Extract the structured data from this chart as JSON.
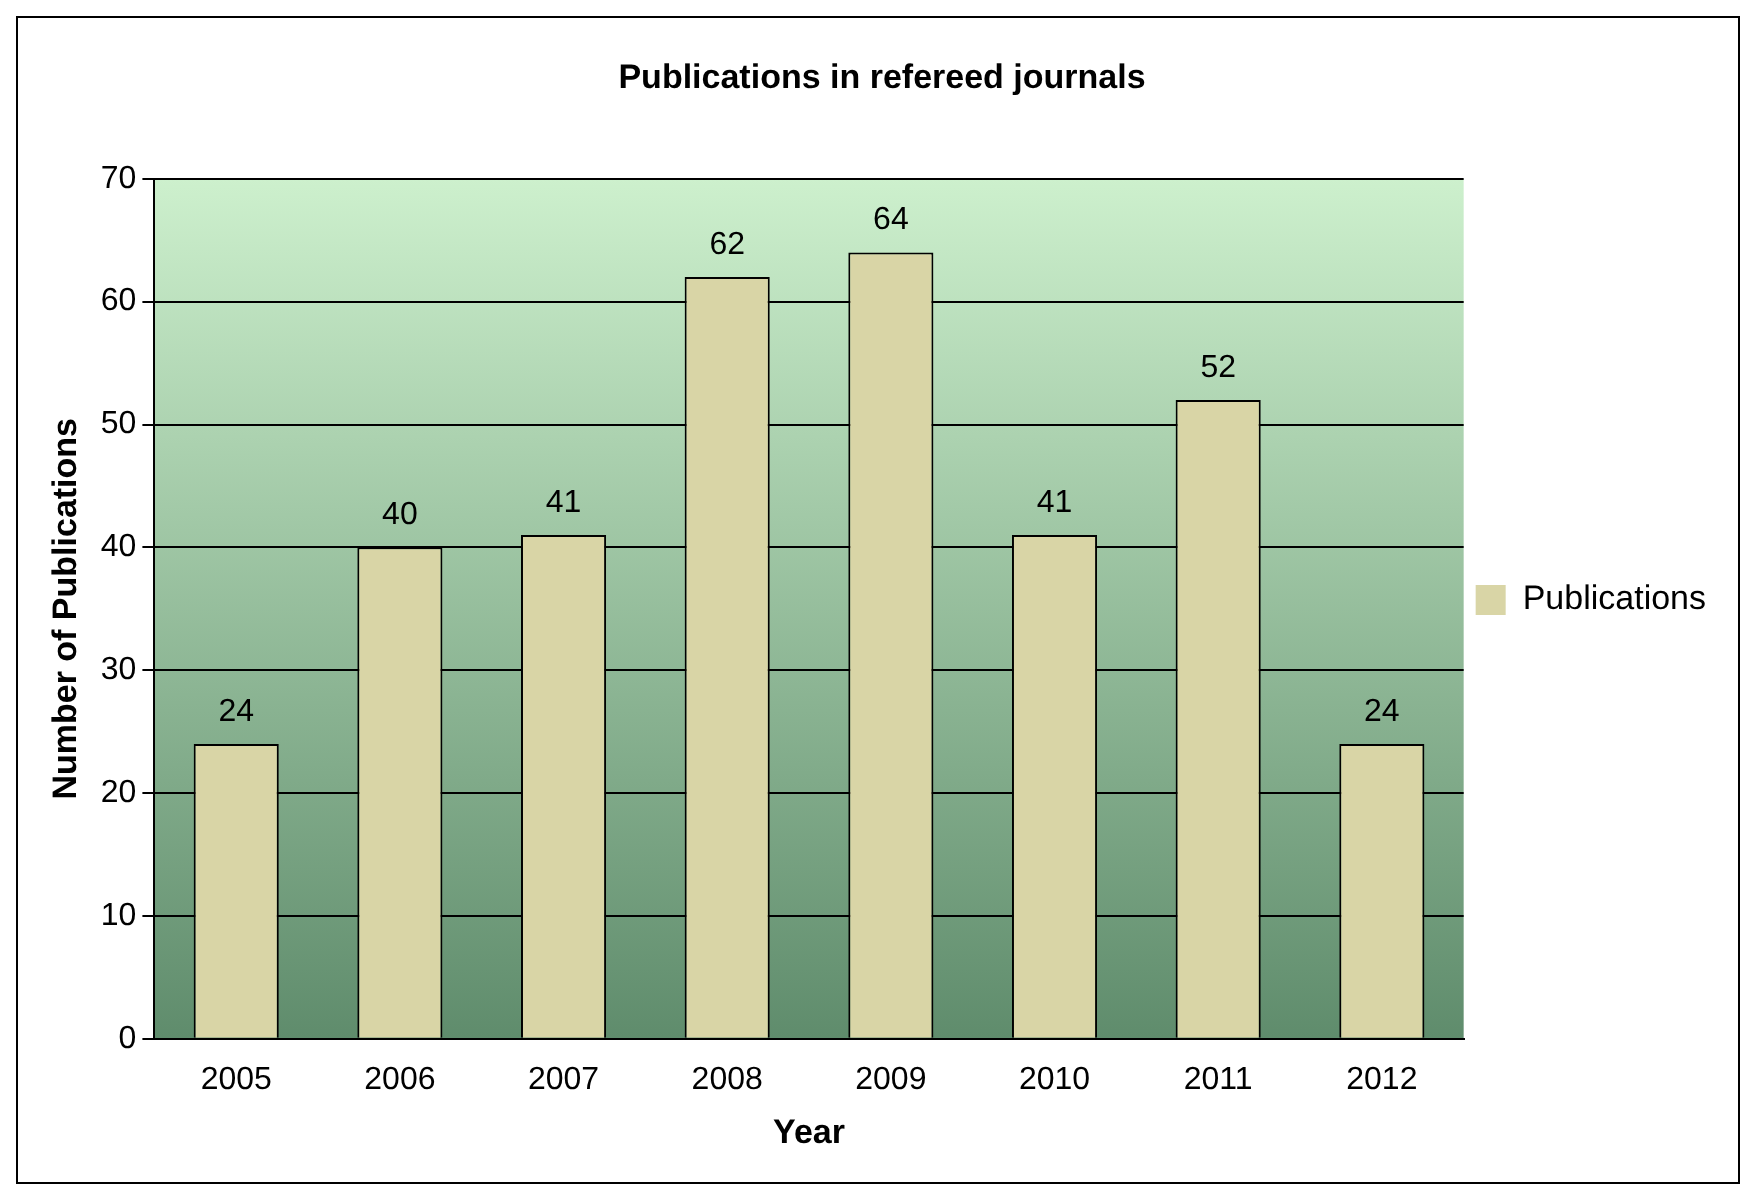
{
  "chart_data": {
    "type": "bar",
    "title": "Publications in refereed journals",
    "xlabel": "Year",
    "ylabel": "Number of Publications",
    "categories": [
      "2005",
      "2006",
      "2007",
      "2008",
      "2009",
      "2010",
      "2011",
      "2012"
    ],
    "series": [
      {
        "name": "Publications",
        "color": "#d9d5a6",
        "values": [
          24,
          40,
          41,
          62,
          64,
          41,
          52,
          24
        ]
      }
    ],
    "ylim": [
      0,
      70
    ],
    "yticks": [
      0,
      10,
      20,
      30,
      40,
      50,
      60,
      70
    ],
    "grid": "y",
    "legend": "right",
    "data_labels": true
  }
}
